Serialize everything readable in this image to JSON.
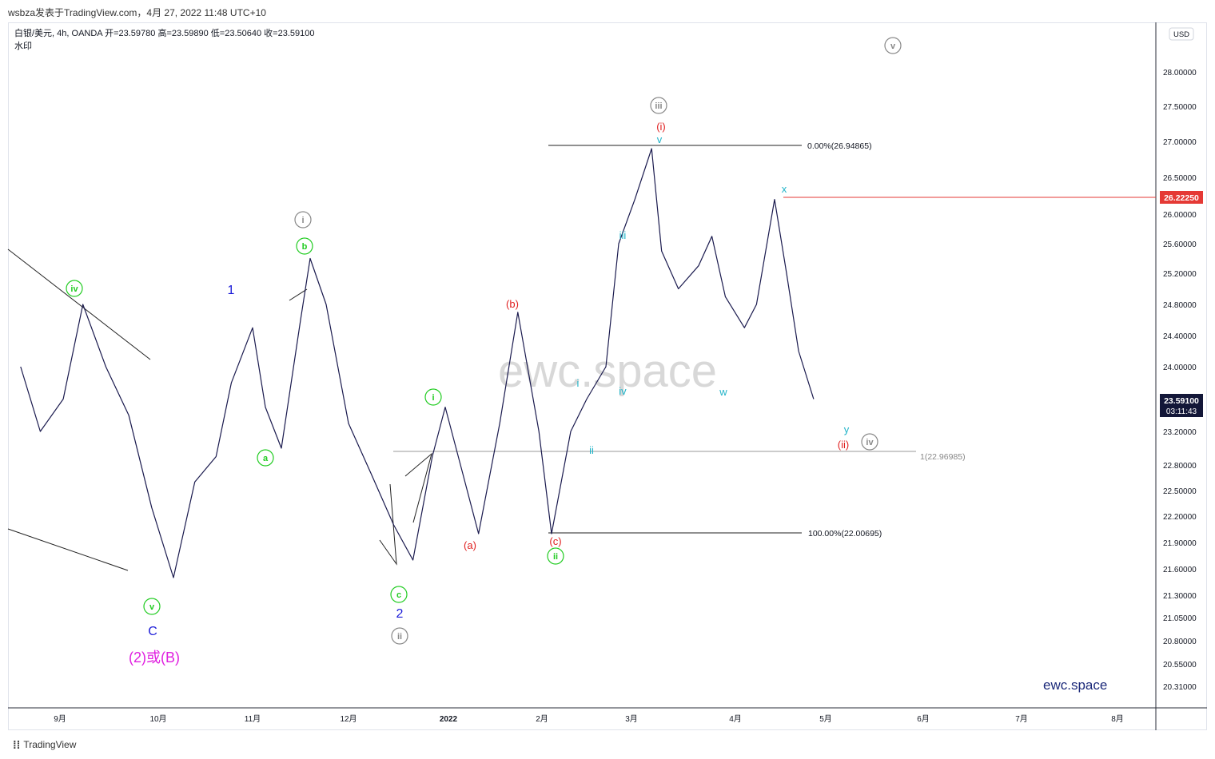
{
  "header": {
    "publish_line": "wsbza发表于TradingView.com，4月 27, 2022 11:48 UTC+10"
  },
  "legend": {
    "symbol_line": "白银/美元, 4h, OANDA  开=23.59780  高=23.59890  低=23.50640  收=23.59100",
    "watermark_label": "水印"
  },
  "currency_button": "USD",
  "watermark_text": "ewc.space",
  "brand_text": "ewc.space",
  "footer": {
    "logo_glyph": "⁞⁞",
    "brand": "TradingView"
  },
  "colors": {
    "price_line": "#1a1a4e",
    "green_label": "#22cc22",
    "blue_label": "#1c1cd8",
    "red_label": "#e02020",
    "cyan_label": "#1fb3c8",
    "gray_label": "#888888",
    "magenta_label": "#e020e0",
    "resistance_line": "#e53935",
    "current_price_bg": "#131738"
  },
  "chart_data": {
    "type": "line",
    "instrument": "白银/美元",
    "timeframe": "4h",
    "exchange": "OANDA",
    "x_ticks": [
      "9月",
      "10月",
      "11月",
      "12月",
      "2022",
      "2月",
      "3月",
      "4月",
      "5月",
      "6月",
      "7月",
      "8月"
    ],
    "y_ticks": [
      "28.00000",
      "27.50000",
      "27.00000",
      "26.50000",
      "26.00000",
      "25.60000",
      "25.20000",
      "24.80000",
      "24.40000",
      "24.00000",
      "23.20000",
      "22.80000",
      "22.50000",
      "22.20000",
      "21.90000",
      "21.60000",
      "21.30000",
      "21.05000",
      "20.80000",
      "20.55000",
      "20.31000"
    ],
    "current_price": "23.59100",
    "countdown": "03:11:43",
    "resistance_price": "26.22250",
    "x_months": [
      "2021-09",
      "2021-10",
      "2021-11",
      "2021-12",
      "2022-01",
      "2022-02",
      "2022-03",
      "2022-04",
      "2022-05",
      "2022-06",
      "2022-07",
      "2022-08"
    ],
    "series": [
      {
        "x": [
          "2021-08-20",
          "2021-08-26",
          "2021-09-02",
          "2021-09-08",
          "2021-09-15",
          "2021-09-22",
          "2021-09-29",
          "2021-10-06",
          "2021-10-13",
          "2021-10-20",
          "2021-10-25",
          "2021-11-01",
          "2021-11-05",
          "2021-11-10",
          "2021-11-16",
          "2021-11-19",
          "2021-11-24",
          "2021-12-01",
          "2021-12-08",
          "2021-12-15",
          "2021-12-21",
          "2021-12-27",
          "2021-12-31",
          "2022-01-05",
          "2022-01-11",
          "2022-01-18",
          "2022-01-24",
          "2022-01-31",
          "2022-02-04",
          "2022-02-10",
          "2022-02-15",
          "2022-02-21",
          "2022-02-25",
          "2022-03-02",
          "2022-03-07",
          "2022-03-10",
          "2022-03-15",
          "2022-03-21",
          "2022-03-25",
          "2022-03-29",
          "2022-04-04",
          "2022-04-08",
          "2022-04-14",
          "2022-04-18",
          "2022-04-22",
          "2022-04-27"
        ],
        "y": [
          24.0,
          23.2,
          23.6,
          24.8,
          24.0,
          23.4,
          22.3,
          21.5,
          22.6,
          22.9,
          23.8,
          24.5,
          23.5,
          23.0,
          24.6,
          25.4,
          24.8,
          23.3,
          22.7,
          22.1,
          21.7,
          22.9,
          23.5,
          22.8,
          22.0,
          23.3,
          24.7,
          23.2,
          22.0,
          23.2,
          23.6,
          24.0,
          25.6,
          26.2,
          26.9,
          25.5,
          25.0,
          25.3,
          25.7,
          24.9,
          24.5,
          24.8,
          26.2,
          25.2,
          24.2,
          23.6
        ]
      }
    ],
    "fib_levels": [
      {
        "label": "0.00%(26.94865)",
        "price": 26.94865
      },
      {
        "label": "100.00%(22.00695)",
        "price": 22.00695
      },
      {
        "label": "1(22.96985)",
        "price": 22.96985
      }
    ],
    "wave_labels": [
      {
        "text": "iv",
        "style": "green-circle"
      },
      {
        "text": "v",
        "style": "green-circle"
      },
      {
        "text": "C",
        "style": "blue"
      },
      {
        "text": "(2)或(B)",
        "style": "magenta"
      },
      {
        "text": "1",
        "style": "blue"
      },
      {
        "text": "a",
        "style": "green-circle"
      },
      {
        "text": "b",
        "style": "green-circle"
      },
      {
        "text": "i",
        "style": "gray-circle"
      },
      {
        "text": "i",
        "style": "green-circle"
      },
      {
        "text": "c",
        "style": "green-circle"
      },
      {
        "text": "2",
        "style": "blue"
      },
      {
        "text": "ii",
        "style": "gray-circle"
      },
      {
        "text": "(a)",
        "style": "red"
      },
      {
        "text": "(b)",
        "style": "red"
      },
      {
        "text": "(c)",
        "style": "red"
      },
      {
        "text": "ii",
        "style": "green-circle"
      },
      {
        "text": "i",
        "style": "cyan"
      },
      {
        "text": "ii",
        "style": "cyan"
      },
      {
        "text": "iii",
        "style": "cyan"
      },
      {
        "text": "iv",
        "style": "cyan"
      },
      {
        "text": "v",
        "style": "cyan"
      },
      {
        "text": "(i)",
        "style": "red"
      },
      {
        "text": "iii",
        "style": "gray-circle"
      },
      {
        "text": "w",
        "style": "cyan"
      },
      {
        "text": "x",
        "style": "cyan"
      },
      {
        "text": "y",
        "style": "cyan"
      },
      {
        "text": "(ii)",
        "style": "red"
      },
      {
        "text": "iv",
        "style": "gray-circle"
      },
      {
        "text": "v",
        "style": "gray-circle"
      }
    ]
  }
}
